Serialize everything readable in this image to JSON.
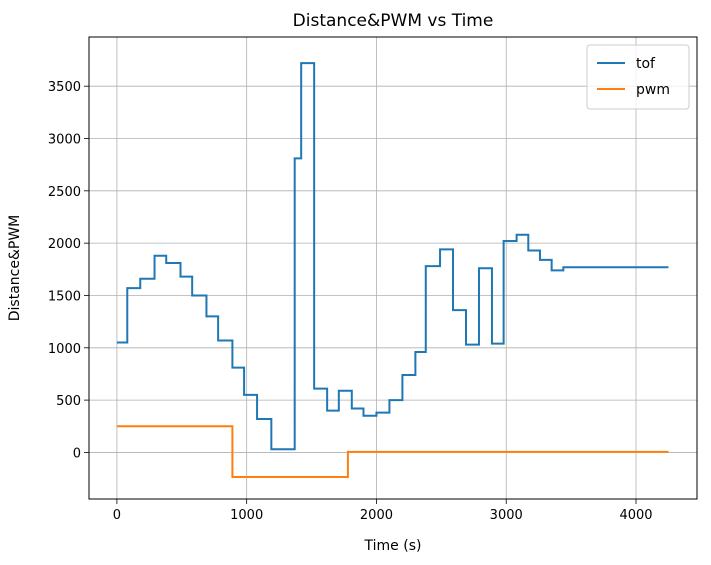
{
  "chart_data": {
    "type": "line",
    "title": "Distance&PWM vs Time",
    "xlabel": "Time (s)",
    "ylabel": "Distance&PWM",
    "xlim": [
      -215,
      4470
    ],
    "ylim": [
      -445,
      3970
    ],
    "xticks": [
      0,
      1000,
      2000,
      3000,
      4000
    ],
    "xtick_labels": [
      "0",
      "1000",
      "2000",
      "3000",
      "4000"
    ],
    "yticks": [
      0,
      500,
      1000,
      1500,
      2000,
      2500,
      3000,
      3500
    ],
    "ytick_labels": [
      "0",
      "500",
      "1000",
      "1500",
      "2000",
      "2500",
      "3000",
      "3500"
    ],
    "grid": true,
    "legend_position": "top-right",
    "series": [
      {
        "name": "tof",
        "color": "#1f77b4",
        "step": true,
        "x": [
          0,
          80,
          180,
          290,
          380,
          490,
          580,
          690,
          780,
          890,
          980,
          1080,
          1190,
          1370,
          1420,
          1520,
          1620,
          1710,
          1810,
          1900,
          2000,
          2100,
          2200,
          2300,
          2380,
          2490,
          2590,
          2690,
          2790,
          2890,
          2980,
          3080,
          3170,
          3260,
          3350,
          3440,
          4250
        ],
        "y": [
          1050,
          1570,
          1660,
          1880,
          1810,
          1680,
          1500,
          1300,
          1070,
          810,
          550,
          320,
          30,
          2810,
          3720,
          610,
          400,
          590,
          420,
          350,
          380,
          500,
          740,
          960,
          1780,
          1940,
          1360,
          1030,
          1760,
          1040,
          2020,
          2080,
          1930,
          1840,
          1740,
          1770,
          1770
        ]
      },
      {
        "name": "pwm",
        "color": "#ff7f0e",
        "step": true,
        "x": [
          0,
          890,
          1780,
          4250
        ],
        "y": [
          250,
          -235,
          5,
          5
        ]
      }
    ]
  }
}
